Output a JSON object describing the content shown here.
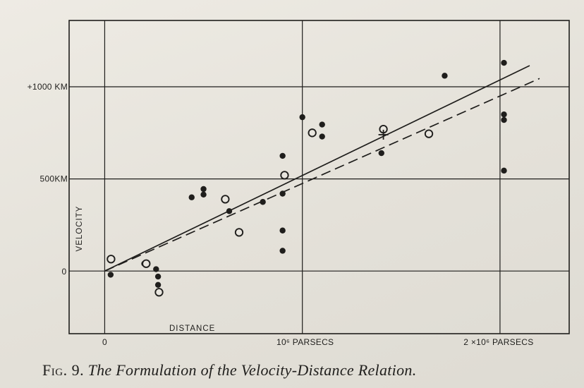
{
  "chart_data": {
    "type": "scatter",
    "title": "",
    "xlabel": "DISTANCE",
    "ylabel": "VELOCITY",
    "x_unit": "parsecs",
    "y_unit": "km/s",
    "xlim": [
      -180000.0,
      2350000.0
    ],
    "ylim": [
      -340,
      1360
    ],
    "x_gridlines": [
      0,
      1000000,
      2000000
    ],
    "y_gridlines": [
      0,
      500,
      1000
    ],
    "grid": true,
    "x_tick_labels": [
      {
        "value": 0,
        "text": "0"
      },
      {
        "value": 1000000,
        "text": "10⁶ PARSECS"
      },
      {
        "value": 2000000,
        "text": "2 ×10⁶ PARSECS"
      }
    ],
    "y_tick_labels": [
      {
        "value": 0,
        "text": "0"
      },
      {
        "value": 500,
        "text": "500KM"
      },
      {
        "value": 1000,
        "text": "+1000 KM"
      }
    ],
    "series": [
      {
        "marker": "filled-circle",
        "points": [
          {
            "x": 30000,
            "y": -20
          },
          {
            "x": 200000,
            "y": 40
          },
          {
            "x": 260000,
            "y": 10
          },
          {
            "x": 270000,
            "y": -30
          },
          {
            "x": 270000,
            "y": -75
          },
          {
            "x": 440000,
            "y": 400
          },
          {
            "x": 500000,
            "y": 415
          },
          {
            "x": 500000,
            "y": 445
          },
          {
            "x": 630000,
            "y": 325
          },
          {
            "x": 800000,
            "y": 375
          },
          {
            "x": 900000,
            "y": 420
          },
          {
            "x": 900000,
            "y": 625
          },
          {
            "x": 900000,
            "y": 220
          },
          {
            "x": 900000,
            "y": 110
          },
          {
            "x": 1000000,
            "y": 835
          },
          {
            "x": 1100000,
            "y": 730
          },
          {
            "x": 1100000,
            "y": 795
          },
          {
            "x": 1400000,
            "y": 640
          },
          {
            "x": 1720000,
            "y": 1060
          },
          {
            "x": 2020000,
            "y": 1130
          },
          {
            "x": 2020000,
            "y": 850
          },
          {
            "x": 2020000,
            "y": 820
          },
          {
            "x": 2020000,
            "y": 545
          }
        ]
      },
      {
        "marker": "open-circle",
        "points": [
          {
            "x": 32000,
            "y": 65
          },
          {
            "x": 210000,
            "y": 40
          },
          {
            "x": 275000,
            "y": -115
          },
          {
            "x": 610000,
            "y": 390
          },
          {
            "x": 680000,
            "y": 210
          },
          {
            "x": 910000,
            "y": 520
          },
          {
            "x": 1050000,
            "y": 750
          },
          {
            "x": 1410000,
            "y": 770
          },
          {
            "x": 1640000,
            "y": 745
          }
        ]
      },
      {
        "marker": "cross",
        "points": [
          {
            "x": 1410000,
            "y": 740
          }
        ]
      }
    ],
    "fit_lines": [
      {
        "style": "solid",
        "x": [
          0,
          2150000
        ],
        "y": [
          0,
          1115
        ]
      },
      {
        "style": "dashed",
        "x": [
          0,
          2200000
        ],
        "y": [
          0,
          1045
        ]
      }
    ]
  },
  "caption": {
    "prefix": "Fig. 9.",
    "title": "The Formulation of the Velocity-Distance Relation."
  },
  "colors": {
    "ink": "#1f1e1c",
    "paper": "#e9e6df"
  }
}
